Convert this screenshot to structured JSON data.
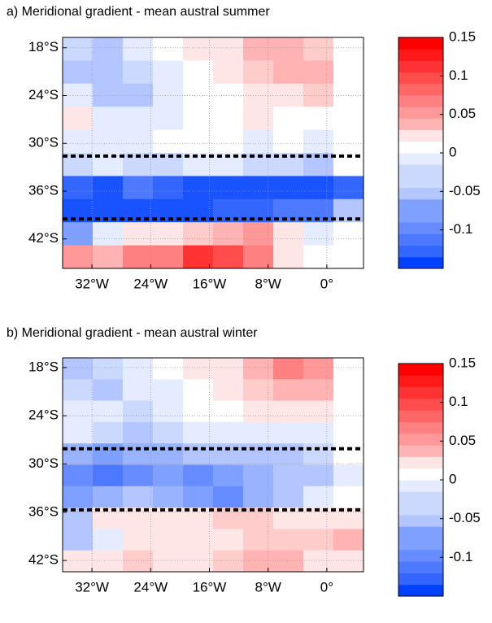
{
  "chart_data": [
    {
      "type": "heatmap",
      "title": "a) Meridional gradient - mean austral summer",
      "lon": [
        -33.95,
        -29.85,
        -25.75,
        -21.65,
        -17.55,
        -13.45,
        -9.35,
        -5.25,
        -1.15,
        2.95
      ],
      "lat": [
        -18.15,
        -21.05,
        -23.95,
        -26.85,
        -29.75,
        -32.65,
        -35.55,
        -38.45,
        -41.35,
        -44.25
      ],
      "values": [
        [
          -0.03,
          -0.04,
          -0.02,
          0,
          0.01,
          0.01,
          0.04,
          0.05,
          0.03,
          0
        ],
        [
          -0.04,
          -0.05,
          -0.03,
          -0.01,
          0,
          0.01,
          0.03,
          0.04,
          0.05,
          0
        ],
        [
          -0.02,
          -0.04,
          -0.05,
          -0.02,
          0,
          0,
          0.01,
          0.02,
          0.03,
          0
        ],
        [
          0.01,
          -0.02,
          -0.02,
          -0.01,
          0,
          0,
          0.01,
          0,
          0,
          0
        ],
        [
          -0.01,
          -0.01,
          -0.01,
          0,
          0,
          0,
          -0.01,
          0,
          -0.01,
          0
        ],
        [
          -0.03,
          -0.02,
          -0.03,
          -0.03,
          -0.02,
          -0.02,
          -0.03,
          -0.03,
          -0.04,
          0
        ],
        [
          -0.12,
          -0.13,
          -0.11,
          -0.12,
          -0.13,
          -0.14,
          -0.14,
          -0.14,
          -0.14,
          -0.12
        ],
        [
          -0.14,
          -0.14,
          -0.13,
          -0.14,
          -0.13,
          -0.12,
          -0.12,
          -0.11,
          -0.1,
          -0.05
        ],
        [
          -0.08,
          -0.02,
          0.02,
          0.01,
          0.03,
          0.04,
          0.06,
          0.02,
          -0.01,
          0
        ],
        [
          0.06,
          0.05,
          0.07,
          0.08,
          0.12,
          0.1,
          0.07,
          0.02,
          0,
          0
        ]
      ],
      "xlim": [
        -36,
        5
      ],
      "ylim": [
        -45.7,
        -16.7
      ],
      "xticks": [
        {
          "value": -32,
          "label": "32°W"
        },
        {
          "value": -24,
          "label": "24°W"
        },
        {
          "value": -16,
          "label": "16°W"
        },
        {
          "value": -8,
          "label": "8°W"
        },
        {
          "value": 0,
          "label": "0°"
        }
      ],
      "yticks": [
        {
          "value": -18,
          "label": "18°S"
        },
        {
          "value": -24,
          "label": "24°S"
        },
        {
          "value": -30,
          "label": "30°S"
        },
        {
          "value": -36,
          "label": "36°S"
        },
        {
          "value": -42,
          "label": "42°S"
        }
      ],
      "hlines": [
        -31.6,
        -39.5
      ],
      "clim": [
        -0.15,
        0.15
      ],
      "cticks": [
        0.15,
        0.1,
        0.05,
        0,
        -0.05,
        -0.1
      ],
      "grid": true
    },
    {
      "type": "heatmap",
      "title": "b) Meridional gradient - mean austral winter",
      "lon": [
        -33.95,
        -29.85,
        -25.75,
        -21.65,
        -17.55,
        -13.45,
        -9.35,
        -5.25,
        -1.15,
        2.95
      ],
      "lat": [
        -18.13,
        -20.79,
        -23.45,
        -26.11,
        -28.77,
        -31.43,
        -34.09,
        -36.75,
        -39.41,
        -42.07
      ],
      "values": [
        [
          -0.04,
          -0.03,
          -0.01,
          0,
          0.01,
          0.02,
          0.05,
          0.07,
          0.06,
          0
        ],
        [
          -0.03,
          -0.04,
          -0.02,
          -0.01,
          0,
          0.01,
          0.03,
          0.05,
          0.05,
          0
        ],
        [
          -0.02,
          -0.02,
          -0.03,
          -0.01,
          0,
          0,
          0.01,
          0.02,
          0.01,
          0
        ],
        [
          -0.02,
          -0.03,
          -0.04,
          -0.03,
          -0.02,
          -0.02,
          -0.02,
          -0.02,
          -0.01,
          0
        ],
        [
          -0.06,
          -0.07,
          -0.06,
          -0.06,
          -0.05,
          -0.04,
          -0.05,
          -0.04,
          -0.03,
          0
        ],
        [
          -0.09,
          -0.1,
          -0.09,
          -0.08,
          -0.09,
          -0.07,
          -0.06,
          -0.05,
          -0.04,
          -0.01
        ],
        [
          -0.07,
          -0.06,
          -0.05,
          -0.06,
          -0.07,
          -0.09,
          -0.06,
          -0.04,
          -0.02,
          0
        ],
        [
          -0.04,
          0.01,
          0.02,
          0.01,
          0.02,
          0.03,
          0.03,
          0.02,
          0.02,
          0.01
        ],
        [
          -0.05,
          -0.02,
          0.01,
          0.01,
          0.01,
          0.02,
          0.03,
          0.03,
          0.03,
          0.04
        ],
        [
          0.02,
          0.02,
          0.03,
          0.02,
          0.02,
          0.03,
          0.05,
          0.04,
          0.02,
          0.01
        ]
      ],
      "xlim": [
        -36,
        5
      ],
      "ylim": [
        -43.4,
        -16.8
      ],
      "xticks": [
        {
          "value": -32,
          "label": "32°W"
        },
        {
          "value": -24,
          "label": "24°W"
        },
        {
          "value": -16,
          "label": "16°W"
        },
        {
          "value": -8,
          "label": "8°W"
        },
        {
          "value": 0,
          "label": "0°"
        }
      ],
      "yticks": [
        {
          "value": -18,
          "label": "18°S"
        },
        {
          "value": -24,
          "label": "24°S"
        },
        {
          "value": -30,
          "label": "30°S"
        },
        {
          "value": -36,
          "label": "36°S"
        },
        {
          "value": -42,
          "label": "42°S"
        }
      ],
      "hlines": [
        -28.1,
        -35.7
      ],
      "clim": [
        -0.15,
        0.15
      ],
      "cticks": [
        0.15,
        0.1,
        0.05,
        0,
        -0.05,
        -0.1
      ],
      "grid": true
    }
  ]
}
